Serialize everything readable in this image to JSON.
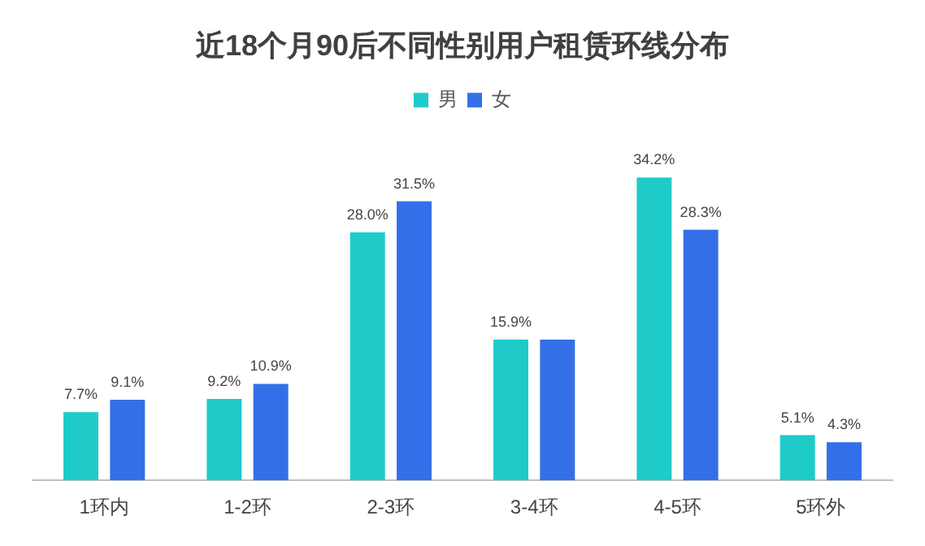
{
  "chart_data": {
    "type": "bar",
    "title": "近18个月90后不同性别用户租赁环线分布",
    "categories": [
      "1环内",
      "1-2环",
      "2-3环",
      "3-4环",
      "4-5环",
      "5环外"
    ],
    "series": [
      {
        "name": "男",
        "color": "#1ecbc8",
        "values": [
          7.7,
          9.2,
          28.0,
          15.9,
          34.2,
          5.1
        ],
        "value_labels": [
          "7.7%",
          "9.2%",
          "28.0%",
          "15.9%",
          "34.2%",
          "5.1%"
        ]
      },
      {
        "name": "女",
        "color": "#3370e8",
        "values": [
          9.1,
          10.9,
          31.5,
          15.9,
          28.3,
          4.3
        ],
        "value_labels": [
          "9.1%",
          "10.9%",
          "31.5%",
          null,
          "28.3%",
          "4.3%"
        ]
      }
    ],
    "legend": "top",
    "grid": false
  }
}
